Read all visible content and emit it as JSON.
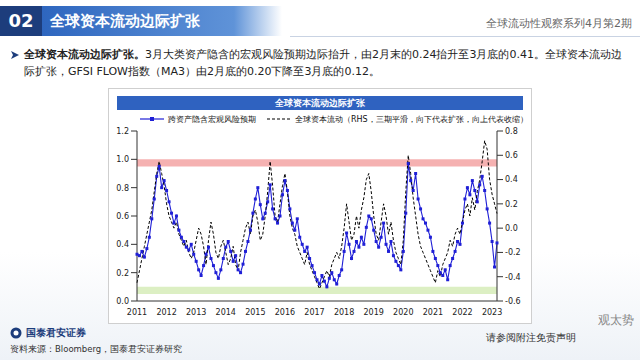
{
  "slide": {
    "number": "02",
    "title": "全球资本流动边际扩张",
    "series_name": "全球流动性观察系列4月第2期",
    "bullet": {
      "bold": "全球资本流动边际扩张。",
      "text": "3月大类资产隐含的宏观风险预期边际抬升，由2月末的0.24抬升至3月底的0.41。全球资本流动边际扩张，GFSI FLOW指数（MA3）由2月底的0.20下降至3月底的0.12。"
    },
    "footer": {
      "logo": "国泰君安证券",
      "source": "资料来源：Bloomberg，国泰君安证券研究",
      "disclaimer": "请参阅附注免责声明",
      "watermark": "观太势"
    }
  },
  "chart_data": {
    "type": "line",
    "title": "全球资本流动边际扩张",
    "grid": false,
    "categories": [
      "2011",
      null,
      null,
      null,
      null,
      null,
      null,
      null,
      null,
      null,
      null,
      null,
      "2012",
      null,
      null,
      null,
      null,
      null,
      null,
      null,
      null,
      null,
      null,
      null,
      "2013",
      null,
      null,
      null,
      null,
      null,
      null,
      null,
      null,
      null,
      null,
      null,
      "2014",
      null,
      null,
      null,
      null,
      null,
      null,
      null,
      null,
      null,
      null,
      null,
      "2015",
      null,
      null,
      null,
      null,
      null,
      null,
      null,
      null,
      null,
      null,
      null,
      "2016",
      null,
      null,
      null,
      null,
      null,
      null,
      null,
      null,
      null,
      null,
      null,
      "2017",
      null,
      null,
      null,
      null,
      null,
      null,
      null,
      null,
      null,
      null,
      null,
      "2018",
      null,
      null,
      null,
      null,
      null,
      null,
      null,
      null,
      null,
      null,
      null,
      "2019",
      null,
      null,
      null,
      null,
      null,
      null,
      null,
      null,
      null,
      null,
      null,
      "2020",
      null,
      null,
      null,
      null,
      null,
      null,
      null,
      null,
      null,
      null,
      null,
      "2021",
      null,
      null,
      null,
      null,
      null,
      null,
      null,
      null,
      null,
      null,
      null,
      "2022",
      null,
      null,
      null,
      null,
      null,
      null,
      null,
      null,
      null,
      null,
      null,
      "2023",
      null,
      null
    ],
    "ylim": [
      0,
      1.2
    ],
    "yticks": [
      {
        "value": 0,
        "label": "0.0"
      },
      0.2,
      0.4,
      0.6,
      0.8,
      {
        "value": 1,
        "label": "1.0"
      },
      1.2
    ],
    "y2lim": [
      -0.6,
      0.8
    ],
    "y2ticks": [
      -0.6,
      -0.4,
      -0.2,
      {
        "value": 0,
        "label": "0.0"
      },
      0.2,
      0.4,
      0.6,
      0.8
    ],
    "bands": [
      {
        "y1": 0.95,
        "y2": 1.0,
        "color": "#f4a8a8"
      },
      {
        "y1": 0.05,
        "y2": 0.1,
        "color": "#d8edbd"
      }
    ],
    "series": [
      {
        "name": "跨资产隐含宏观风险预期",
        "color": "#1f1fd6",
        "marker": "square",
        "line_style": "solid",
        "values": [
          0.33,
          0.32,
          0.35,
          0.31,
          0.37,
          0.45,
          0.58,
          0.72,
          0.88,
          0.95,
          0.8,
          0.85,
          0.78,
          0.7,
          0.62,
          0.55,
          0.6,
          0.5,
          0.45,
          0.42,
          0.38,
          0.36,
          0.4,
          0.33,
          0.28,
          0.22,
          0.18,
          0.25,
          0.33,
          0.38,
          0.3,
          0.25,
          0.2,
          0.16,
          0.22,
          0.3,
          0.38,
          0.42,
          0.35,
          0.28,
          0.32,
          0.22,
          0.2,
          0.26,
          0.35,
          0.42,
          0.5,
          0.62,
          0.72,
          0.8,
          0.68,
          0.58,
          0.62,
          0.7,
          0.82,
          0.65,
          0.58,
          0.55,
          0.6,
          0.75,
          0.85,
          0.78,
          0.65,
          0.55,
          0.5,
          0.58,
          0.45,
          0.4,
          0.35,
          0.38,
          0.3,
          0.25,
          0.2,
          0.15,
          0.12,
          0.18,
          0.14,
          0.1,
          0.16,
          0.2,
          0.15,
          0.12,
          0.18,
          0.22,
          0.35,
          0.48,
          0.4,
          0.3,
          0.35,
          0.42,
          0.38,
          0.45,
          0.4,
          0.52,
          0.6,
          0.58,
          0.5,
          0.42,
          0.38,
          0.45,
          0.55,
          0.4,
          0.35,
          0.42,
          0.32,
          0.28,
          0.25,
          0.22,
          0.35,
          0.62,
          0.97,
          0.85,
          0.78,
          0.9,
          0.72,
          0.65,
          0.58,
          0.55,
          0.5,
          0.45,
          0.35,
          0.3,
          0.25,
          0.2,
          0.18,
          0.22,
          0.15,
          0.25,
          0.3,
          0.35,
          0.42,
          0.4,
          0.55,
          0.72,
          0.8,
          0.75,
          0.85,
          0.78,
          0.7,
          0.82,
          0.88,
          0.78,
          0.65,
          0.55,
          0.42,
          0.24,
          0.41
        ]
      },
      {
        "name": "全球资本流动（RHS，三期平滑，向下代表扩张，向上代表收缩）",
        "color": "#000000",
        "marker": "none",
        "line_style": "dashed",
        "axis": "y2",
        "values": [
          -0.45,
          -0.35,
          -0.25,
          -0.15,
          -0.05,
          0.05,
          0.15,
          0.3,
          0.45,
          0.55,
          0.45,
          0.35,
          0.2,
          0.1,
          0.05,
          0.0,
          0.05,
          -0.05,
          -0.1,
          -0.15,
          -0.1,
          -0.2,
          -0.25,
          -0.2,
          -0.1,
          0.0,
          -0.05,
          -0.15,
          -0.3,
          -0.1,
          0.05,
          -0.05,
          -0.2,
          -0.25,
          -0.15,
          -0.1,
          -0.2,
          -0.3,
          -0.25,
          -0.15,
          -0.3,
          -0.35,
          -0.2,
          -0.1,
          0.0,
          0.05,
          -0.05,
          0.1,
          0.15,
          0.05,
          -0.1,
          -0.05,
          0.1,
          0.3,
          0.55,
          0.35,
          0.1,
          0.05,
          0.2,
          0.35,
          0.45,
          0.3,
          0.1,
          0.0,
          -0.05,
          -0.15,
          -0.2,
          -0.25,
          -0.3,
          -0.2,
          -0.3,
          -0.35,
          -0.4,
          -0.45,
          -0.5,
          -0.45,
          -0.4,
          -0.35,
          -0.4,
          -0.3,
          -0.25,
          -0.2,
          -0.25,
          -0.15,
          0.0,
          0.2,
          0.05,
          -0.1,
          -0.05,
          0.1,
          0.0,
          0.15,
          0.25,
          0.4,
          0.45,
          0.3,
          0.1,
          -0.05,
          -0.1,
          0.05,
          0.2,
          0.1,
          -0.05,
          0.05,
          -0.1,
          -0.2,
          -0.25,
          -0.3,
          -0.1,
          0.3,
          0.6,
          0.45,
          0.25,
          0.1,
          -0.05,
          -0.15,
          -0.2,
          -0.25,
          -0.3,
          -0.35,
          -0.4,
          -0.45,
          -0.35,
          -0.4,
          -0.3,
          -0.25,
          -0.2,
          -0.1,
          -0.15,
          -0.05,
          0.0,
          -0.05,
          0.05,
          0.15,
          0.2,
          0.1,
          0.25,
          0.15,
          0.3,
          0.4,
          0.55,
          0.72,
          0.65,
          0.4,
          0.28,
          0.2,
          0.12
        ]
      }
    ]
  }
}
